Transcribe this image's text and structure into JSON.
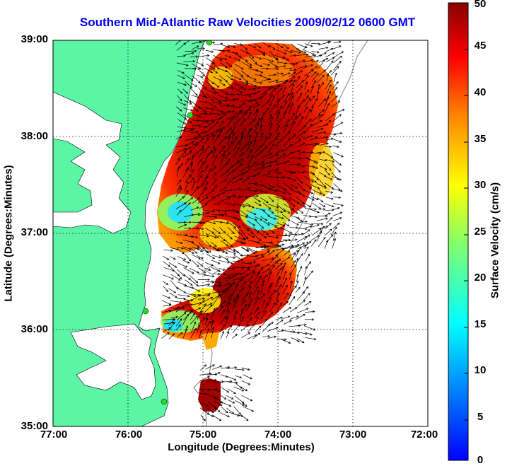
{
  "title": "Southern Mid-Atlantic Raw Velocities 2009/02/12 0600 GMT",
  "axes": {
    "xlabel": "Longitude (Degrees:Minutes)",
    "ylabel": "Latitude (Degrees:Minutes)",
    "xticks": [
      "77:00",
      "76:00",
      "75:00",
      "74:00",
      "73:00",
      "72:00"
    ],
    "yticks": [
      "39:00",
      "38:00",
      "37:00",
      "36:00",
      "35:00"
    ],
    "xlim": [
      -77,
      -72
    ],
    "ylim": [
      35,
      39
    ],
    "grid": "dotted"
  },
  "colorbar": {
    "label": "Surface Velocity (cm/s)",
    "ticks": [
      "50",
      "45",
      "40",
      "35",
      "30",
      "25",
      "20",
      "15",
      "10",
      "5",
      "0"
    ],
    "range": [
      0,
      50
    ],
    "colormap": "jet"
  },
  "colors": {
    "land": "#5cf5a6",
    "ocean": "#ffffff",
    "title": "#0000ee",
    "station": "#22dd22",
    "isobath": "#9a9a9a"
  }
}
